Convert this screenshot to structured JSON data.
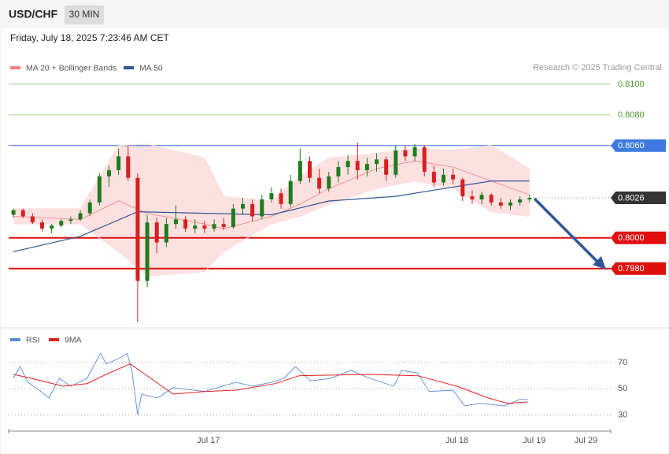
{
  "header": {
    "symbol": "USD/CHF",
    "interval": "30 MIN",
    "datetime": "Friday, July 18, 2025 7:23:46 AM CET"
  },
  "chart_data": [
    {
      "type": "candlestick",
      "attribution": "Research © 2025 Trading Central",
      "up_color": "#1e7b1e",
      "down_color": "#d62020",
      "xlim": [
        -0.5,
        62.5
      ],
      "ylim": [
        0.7944,
        0.8106
      ],
      "x": [
        0,
        1,
        2,
        3,
        4,
        5,
        6,
        7,
        8,
        9,
        10,
        11,
        12,
        13,
        14,
        15,
        16,
        17,
        18,
        19,
        20,
        21,
        22,
        23,
        24,
        25,
        26,
        27,
        28,
        29,
        30,
        31,
        32,
        33,
        34,
        35,
        36,
        37,
        38,
        39,
        40,
        41,
        42,
        43,
        44,
        45,
        46,
        47,
        48,
        49,
        50,
        51,
        52,
        53,
        54
      ],
      "candles": [
        [
          0.8015,
          0.8019,
          0.8013,
          0.8018
        ],
        [
          0.8018,
          0.8019,
          0.8013,
          0.8014
        ],
        [
          0.8014,
          0.8016,
          0.8009,
          0.801
        ],
        [
          0.801,
          0.8012,
          0.8004,
          0.8006
        ],
        [
          0.8006,
          0.8009,
          0.8003,
          0.8008
        ],
        [
          0.8008,
          0.8012,
          0.8007,
          0.8011
        ],
        [
          0.8011,
          0.8014,
          0.8009,
          0.8012
        ],
        [
          0.8012,
          0.8018,
          0.8011,
          0.8016
        ],
        [
          0.8016,
          0.8025,
          0.8014,
          0.8023
        ],
        [
          0.8023,
          0.8042,
          0.8021,
          0.804
        ],
        [
          0.804,
          0.8047,
          0.8033,
          0.8044
        ],
        [
          0.8044,
          0.8058,
          0.8041,
          0.8053
        ],
        [
          0.8053,
          0.806,
          0.8037,
          0.8039
        ],
        [
          0.8039,
          0.8042,
          0.7945,
          0.7972
        ],
        [
          0.7972,
          0.8015,
          0.7968,
          0.801
        ],
        [
          0.801,
          0.8013,
          0.799,
          0.7997
        ],
        [
          0.7997,
          0.8013,
          0.7994,
          0.8009
        ],
        [
          0.8009,
          0.8021,
          0.8006,
          0.8012
        ],
        [
          0.8012,
          0.8014,
          0.8004,
          0.8006
        ],
        [
          0.8006,
          0.8012,
          0.8003,
          0.8008
        ],
        [
          0.8008,
          0.8011,
          0.8003,
          0.8006
        ],
        [
          0.8006,
          0.8012,
          0.8004,
          0.8009
        ],
        [
          0.8009,
          0.8013,
          0.8005,
          0.8007
        ],
        [
          0.8007,
          0.8022,
          0.8006,
          0.8019
        ],
        [
          0.8019,
          0.8026,
          0.8015,
          0.8022
        ],
        [
          0.8022,
          0.8025,
          0.8011,
          0.8014
        ],
        [
          0.8014,
          0.8028,
          0.8012,
          0.8025
        ],
        [
          0.8025,
          0.8033,
          0.8023,
          0.8029
        ],
        [
          0.8029,
          0.8032,
          0.8019,
          0.8022
        ],
        [
          0.8022,
          0.8041,
          0.802,
          0.8037
        ],
        [
          0.8037,
          0.8058,
          0.8035,
          0.805
        ],
        [
          0.805,
          0.8053,
          0.8036,
          0.8039
        ],
        [
          0.8039,
          0.8045,
          0.8029,
          0.8032
        ],
        [
          0.8032,
          0.8043,
          0.803,
          0.804
        ],
        [
          0.804,
          0.805,
          0.8036,
          0.8046
        ],
        [
          0.8046,
          0.8054,
          0.8041,
          0.805
        ],
        [
          0.805,
          0.8062,
          0.8038,
          0.8044
        ],
        [
          0.8044,
          0.8052,
          0.804,
          0.8048
        ],
        [
          0.8048,
          0.8055,
          0.8043,
          0.8051
        ],
        [
          0.8051,
          0.8053,
          0.8037,
          0.8041
        ],
        [
          0.8041,
          0.806,
          0.8039,
          0.8057
        ],
        [
          0.8057,
          0.806,
          0.805,
          0.8053
        ],
        [
          0.8053,
          0.8061,
          0.805,
          0.8059
        ],
        [
          0.8059,
          0.806,
          0.804,
          0.8043
        ],
        [
          0.8043,
          0.8047,
          0.8033,
          0.8036
        ],
        [
          0.8036,
          0.8045,
          0.8034,
          0.8041
        ],
        [
          0.8041,
          0.8045,
          0.8035,
          0.8038
        ],
        [
          0.8038,
          0.8039,
          0.8024,
          0.8027
        ],
        [
          0.8027,
          0.8031,
          0.8022,
          0.8025
        ],
        [
          0.8025,
          0.803,
          0.8022,
          0.8028
        ],
        [
          0.8028,
          0.8029,
          0.8021,
          0.8023
        ],
        [
          0.8023,
          0.8026,
          0.8019,
          0.8021
        ],
        [
          0.8021,
          0.8025,
          0.8018,
          0.8023
        ],
        [
          0.8023,
          0.8027,
          0.8021,
          0.8025
        ],
        [
          0.8025,
          0.8028,
          0.8023,
          0.8026
        ]
      ],
      "overlays": [
        {
          "name": "MA 20 + Bollinger Bands",
          "color": "#f08080",
          "band_color": "#fde0e0",
          "x": [
            0,
            7,
            11,
            14,
            20,
            22,
            27,
            30,
            33,
            38,
            42,
            46,
            50,
            54
          ],
          "values": [
            0.8014,
            0.8012,
            0.8024,
            0.8016,
            0.8009,
            0.8006,
            0.8014,
            0.8022,
            0.8032,
            0.8045,
            0.805,
            0.8046,
            0.8037,
            0.8028
          ],
          "upper": [
            0.8019,
            0.8019,
            0.806,
            0.8061,
            0.8052,
            0.8027,
            0.8024,
            0.804,
            0.8052,
            0.8055,
            0.8058,
            0.8057,
            0.806,
            0.8045
          ],
          "lower": [
            0.8009,
            0.8009,
            0.7991,
            0.7975,
            0.7978,
            0.7991,
            0.8009,
            0.8014,
            0.8022,
            0.8032,
            0.8037,
            0.8032,
            0.8017,
            0.8014
          ]
        },
        {
          "name": "MA 50",
          "color": "#2f5597",
          "x": [
            0,
            7,
            13,
            20,
            27,
            33,
            40,
            45,
            50,
            54
          ],
          "values": [
            0.7991,
            0.8001,
            0.8017,
            0.8016,
            0.8015,
            0.8024,
            0.8027,
            0.8032,
            0.8037,
            0.8037
          ]
        }
      ],
      "levels": [
        {
          "value": 0.81,
          "label": "0.8100",
          "color": "#a8d08d",
          "text_color": "#4a9a2a",
          "line": "thin",
          "box": false
        },
        {
          "value": 0.808,
          "label": "0.8080",
          "color": "#a8d08d",
          "text_color": "#4a9a2a",
          "line": "thin",
          "box": false
        },
        {
          "value": 0.806,
          "label": "0.8060",
          "color": "#3d7ae0",
          "text_color": "#ffffff",
          "line": "thin",
          "box": true
        },
        {
          "value": 0.8026,
          "color": "#333333",
          "text_color": "#ffffff",
          "line": "dotted",
          "box": true
        },
        {
          "value": 0.8,
          "label": "0.8000",
          "color": "#e01010",
          "text_color": "#ffffff",
          "line": "thick",
          "box": true
        },
        {
          "value": 0.798,
          "label": "0.7980",
          "color": "#e01010",
          "text_color": "#ffffff",
          "line": "thick",
          "box": true
        }
      ]
    },
    {
      "type": "line",
      "xlim": [
        -0.5,
        62.5
      ],
      "ylim": [
        19,
        82
      ],
      "yticks": [
        70,
        50,
        30
      ],
      "xticks": [
        {
          "value": 20.4,
          "label": "Jul 17"
        },
        {
          "value": 46.4,
          "label": "Jul 18"
        },
        {
          "value": 54.5,
          "label": "Jul 19"
        },
        {
          "value": 59.9,
          "label": "Jul 29"
        }
      ],
      "series": [
        {
          "name": "RSI",
          "color": "#5b8ad8",
          "x": [
            0,
            0.7,
            1.5,
            2.7,
            3.7,
            4.8,
            6,
            7.7,
            9.1,
            9.7,
            11,
            11.9,
            12.4,
            13,
            13.4,
            15.1,
            16.7,
            20,
            23.3,
            25,
            27,
            28.3,
            29.5,
            31.1,
            33.2,
            35.3,
            37.3,
            39.8,
            40.6,
            42.3,
            43.5,
            46,
            47.2,
            48.8,
            51.3,
            53,
            53.8
          ],
          "values": [
            58,
            67,
            55,
            49,
            43,
            58,
            52,
            58,
            77,
            69,
            73,
            77,
            64,
            30,
            46,
            43,
            51,
            48,
            55,
            52,
            55,
            58,
            67,
            56,
            58,
            64,
            58,
            52,
            64,
            62,
            48,
            49,
            37,
            39,
            37,
            42,
            42
          ]
        },
        {
          "name": "9MA",
          "color": "#e02020",
          "x": [
            0,
            1.9,
            5.2,
            7.7,
            9.7,
            12.2,
            13.8,
            16.7,
            20,
            23.3,
            27.4,
            29.9,
            37.3,
            42.3,
            46.4,
            49.7,
            51.7,
            53.8
          ],
          "values": [
            61,
            58,
            52,
            54,
            61,
            69,
            61,
            46,
            48,
            49,
            54,
            60,
            61,
            60,
            52,
            43,
            39,
            40
          ]
        }
      ]
    }
  ]
}
